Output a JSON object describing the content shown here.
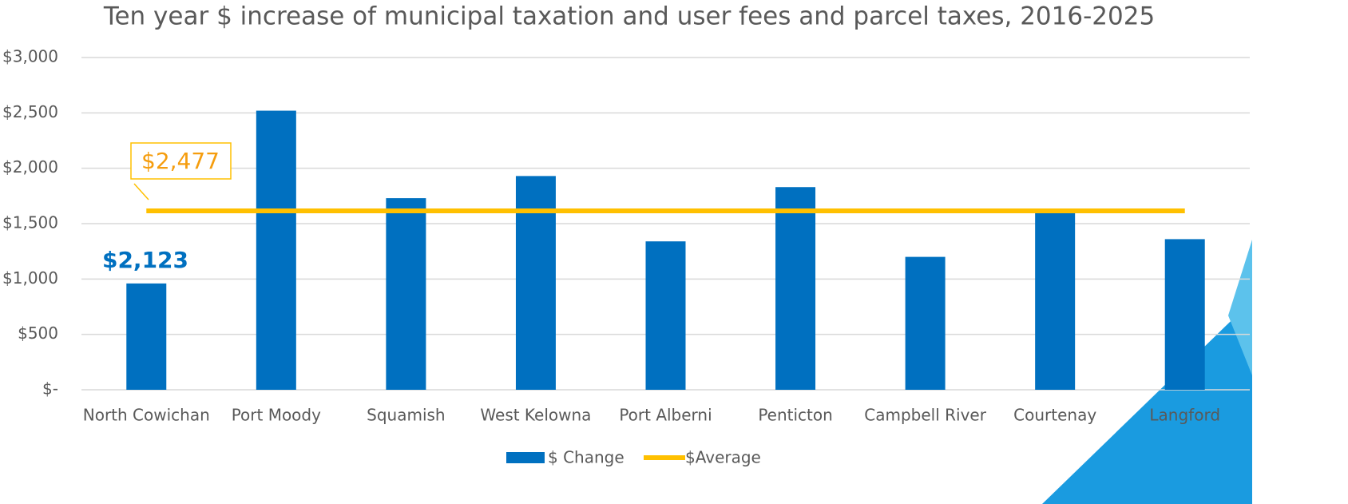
{
  "chart_data": {
    "type": "bar",
    "title": "Ten year $ increase of municipal taxation and user fees and parcel taxes, 2016-2025",
    "categories": [
      "North Cowichan",
      "Port Moody",
      "Squamish",
      "West Kelowna",
      "Port Alberni",
      "Penticton",
      "Campbell River",
      "Courtenay",
      "Langford"
    ],
    "series": [
      {
        "name": "$ Change",
        "type": "bar",
        "color": "#0070c0",
        "values": [
          960,
          2520,
          1730,
          1930,
          1340,
          1830,
          1200,
          1600,
          1360
        ]
      },
      {
        "name": "$Average",
        "type": "line",
        "color": "#ffc000",
        "values": [
          1615,
          1615,
          1615,
          1615,
          1615,
          1615,
          1615,
          1615,
          1615
        ]
      }
    ],
    "ylim": [
      0,
      3000
    ],
    "yticks": [
      {
        "value": 0,
        "label": "$-"
      },
      {
        "value": 500,
        "label": "$500"
      },
      {
        "value": 1000,
        "label": "$1,000"
      },
      {
        "value": 1500,
        "label": "$1,500"
      },
      {
        "value": 2000,
        "label": "$2,000"
      },
      {
        "value": 2500,
        "label": "$2,500"
      },
      {
        "value": 3000,
        "label": "$3,000"
      }
    ],
    "grid": true,
    "legend": "bottom",
    "annotations": [
      {
        "text": "$2,123",
        "color": "#0070c0"
      },
      {
        "text": "$2,477",
        "color": "#f59d0e"
      }
    ]
  }
}
